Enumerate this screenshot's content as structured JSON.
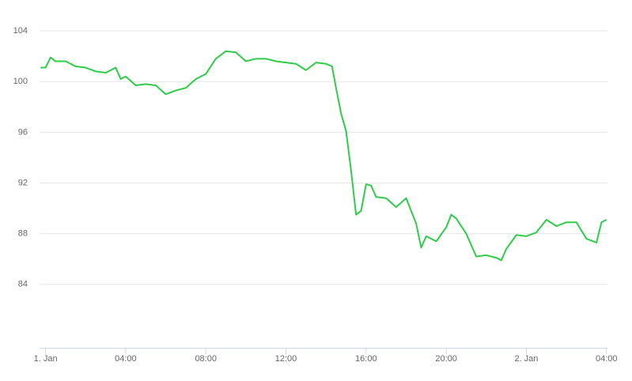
{
  "chart_data": {
    "type": "line",
    "x": [
      -0.25,
      0,
      0.25,
      0.5,
      1,
      1.5,
      2,
      2.5,
      3,
      3.5,
      3.75,
      4,
      4.5,
      5,
      5.5,
      6,
      6.5,
      7,
      7.5,
      8,
      8.5,
      9,
      9.5,
      10,
      10.5,
      11,
      11.5,
      12,
      12.5,
      13,
      13.5,
      14,
      14.3,
      14.5,
      14.75,
      15,
      15.25,
      15.5,
      15.75,
      16,
      16.25,
      16.5,
      17,
      17.5,
      18,
      18.5,
      18.75,
      19,
      19.5,
      20,
      20.25,
      20.5,
      21,
      21.5,
      22,
      22.5,
      22.75,
      23,
      23.5,
      24,
      24.5,
      25,
      25.5,
      26,
      26.5,
      27,
      27.5,
      27.75,
      28
    ],
    "series": [
      {
        "color": "#2ecc4a",
        "values": [
          101.1,
          101.1,
          101.9,
          101.6,
          101.6,
          101.2,
          101.1,
          100.8,
          100.7,
          101.1,
          100.2,
          100.4,
          99.7,
          99.8,
          99.7,
          99.0,
          99.3,
          99.5,
          100.2,
          100.6,
          101.8,
          102.4,
          102.3,
          101.6,
          101.8,
          101.8,
          101.6,
          101.5,
          101.4,
          100.9,
          101.5,
          101.4,
          101.2,
          99.5,
          97.5,
          96.1,
          93,
          89.5,
          89.8,
          91.9,
          91.8,
          90.9,
          90.8,
          90.1,
          90.8,
          88.8,
          86.9,
          87.8,
          87.4,
          88.5,
          89.5,
          89.2,
          88,
          86.2,
          86.3,
          86.1,
          85.9,
          86.8,
          87.9,
          87.8,
          88.1,
          89.1,
          88.6,
          88.9,
          88.9,
          87.6,
          87.3,
          88.9,
          89.1
        ]
      }
    ],
    "xlim": [
      -0.3,
      28.05
    ],
    "xticks": [
      {
        "value": 0,
        "label": "1. Jan"
      },
      {
        "value": 4,
        "label": "04:00"
      },
      {
        "value": 8,
        "label": "08:00"
      },
      {
        "value": 12,
        "label": "12:00"
      },
      {
        "value": 16,
        "label": "16:00"
      },
      {
        "value": 20,
        "label": "20:00"
      },
      {
        "value": 24,
        "label": "2. Jan"
      },
      {
        "value": 28,
        "label": "04:00"
      }
    ],
    "ylim": [
      79,
      105
    ],
    "yticks": [
      84,
      88,
      92,
      96,
      100,
      104
    ],
    "grid": true
  }
}
